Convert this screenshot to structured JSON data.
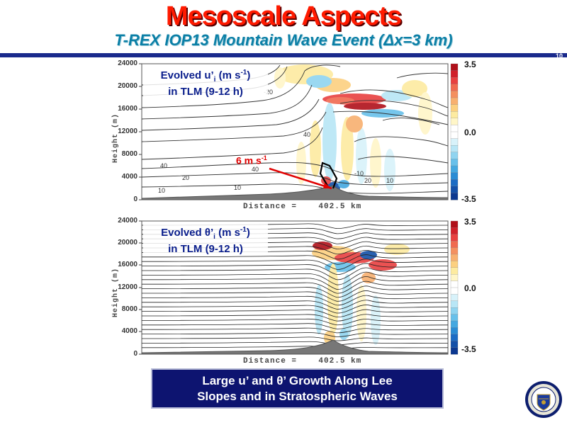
{
  "header": {
    "title": "Mesoscale Aspects",
    "subtitle": "T-REX IOP13 Mountain Wave Event (Δx=3 km)",
    "page_number": "10"
  },
  "top_panel": {
    "label_line1_pre": "Evolved u’",
    "label_line1_sub": "i",
    "label_line1_mid": " (m s",
    "label_line1_sup": "-1",
    "label_line1_post": ")",
    "label_line2": "in TLM (9-12 h)",
    "y_axis_title": "Height (m)",
    "y_ticks": [
      "24000",
      "20000",
      "16000",
      "12000",
      "8000",
      "4000",
      "0"
    ],
    "distance_label": "Distance =    402.5 km",
    "annotation_pre": "6 m s",
    "annotation_sup": "-1",
    "contour_labels": [
      "-20",
      "40",
      "40",
      "40",
      "20",
      "20",
      "10",
      "10",
      "-10",
      "10"
    ]
  },
  "bottom_panel": {
    "label_line1_pre": "Evolved θ’",
    "label_line1_sub": "i",
    "label_line1_mid": " (m s",
    "label_line1_sup": "-1",
    "label_line1_post": ")",
    "label_line2": "in TLM (9-12 h)",
    "y_axis_title": "Height (m)",
    "y_ticks": [
      "24000",
      "20000",
      "16000",
      "12000",
      "8000",
      "4000",
      "0"
    ],
    "distance_label": "Distance =    402.5 km"
  },
  "colorbar": {
    "max_label": "3.5",
    "mid_label": "0.0",
    "min_label": "-3.5",
    "colors": [
      "#b0101a",
      "#d0202a",
      "#e84040",
      "#f06a50",
      "#f49060",
      "#f8b070",
      "#fcd080",
      "#fdeba0",
      "#fff6c8",
      "#ffffff",
      "#ffffff",
      "#d8f2fa",
      "#b8e6f6",
      "#90d4f0",
      "#68c0ea",
      "#44a8e0",
      "#2a8cd4",
      "#1c6cc4",
      "#1450a8",
      "#0c3890"
    ]
  },
  "callout": {
    "line1": "Large u’ and θ’ Growth Along Lee",
    "line2": "Slopes and in Stratospheric Waves"
  },
  "logo": {
    "type": "university seal"
  }
}
